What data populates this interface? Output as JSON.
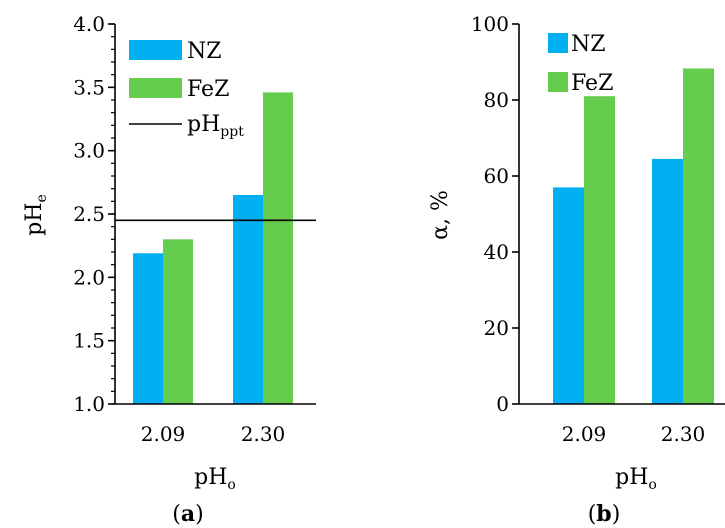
{
  "chart_data": [
    {
      "type": "bar",
      "panel_label": "(a)",
      "categories": [
        "2.09",
        "2.30"
      ],
      "series": [
        {
          "name": "NZ",
          "values": [
            2.19,
            2.65
          ],
          "color": "#00B0F0"
        },
        {
          "name": "FeZ",
          "values": [
            2.3,
            3.46
          ],
          "color": "#66CC4D"
        }
      ],
      "reference_line": {
        "name": "pH",
        "subscript": "ppt",
        "value": 2.45
      },
      "xlabel": "pH",
      "xlabel_sub": "o",
      "ylabel": "pH",
      "ylabel_sub": "e",
      "ylim": [
        1.0,
        4.0
      ],
      "yticks": [
        "1.0",
        "1.5",
        "2.0",
        "2.5",
        "3.0",
        "3.5",
        "4.0"
      ],
      "minor_tick_step": 0.1,
      "legend_position": "top-left",
      "grid": false
    },
    {
      "type": "bar",
      "panel_label": "(b)",
      "categories": [
        "2.09",
        "2.30"
      ],
      "series": [
        {
          "name": "NZ",
          "values": [
            57.0,
            64.5
          ],
          "color": "#00B0F0"
        },
        {
          "name": "FeZ",
          "values": [
            81.0,
            88.3
          ],
          "color": "#66CC4D"
        }
      ],
      "xlabel": "pH",
      "xlabel_sub": "o",
      "ylabel": "α, %",
      "ylim": [
        0,
        100
      ],
      "yticks": [
        "0",
        "20",
        "40",
        "60",
        "80",
        "100"
      ],
      "legend_position": "top-left",
      "grid": false
    }
  ]
}
